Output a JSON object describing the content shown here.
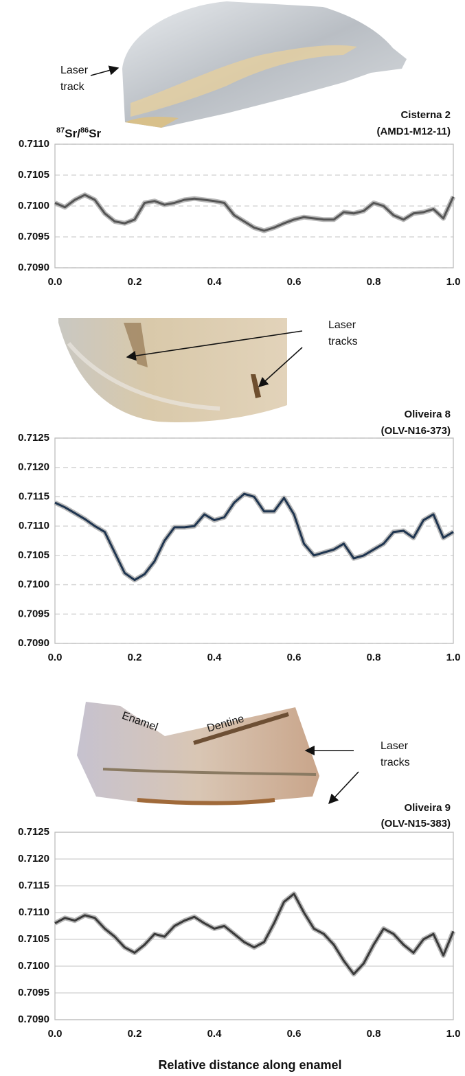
{
  "chart_data": [
    {
      "type": "line",
      "title": [
        "Cisterna 2",
        "(AMD1-M12-11)"
      ],
      "ylabel": [
        "87",
        "Sr/",
        "86",
        "Sr"
      ],
      "annotations": [
        [
          "Laser",
          "track"
        ]
      ],
      "x": [
        0,
        0.025,
        0.05,
        0.075,
        0.1,
        0.125,
        0.15,
        0.175,
        0.2,
        0.225,
        0.25,
        0.275,
        0.3,
        0.325,
        0.35,
        0.375,
        0.4,
        0.425,
        0.45,
        0.475,
        0.5,
        0.525,
        0.55,
        0.575,
        0.6,
        0.625,
        0.65,
        0.675,
        0.7,
        0.725,
        0.75,
        0.775,
        0.8,
        0.825,
        0.85,
        0.875,
        0.9,
        0.925,
        0.95,
        0.975,
        1
      ],
      "values": [
        0.71005,
        0.70998,
        0.7101,
        0.71018,
        0.7101,
        0.70988,
        0.70975,
        0.70972,
        0.70978,
        0.71005,
        0.71008,
        0.71002,
        0.71005,
        0.7101,
        0.71012,
        0.7101,
        0.71008,
        0.71005,
        0.70985,
        0.70975,
        0.70965,
        0.7096,
        0.70965,
        0.70972,
        0.70978,
        0.70982,
        0.7098,
        0.70978,
        0.70978,
        0.7099,
        0.70988,
        0.70992,
        0.71005,
        0.71,
        0.70985,
        0.70978,
        0.70988,
        0.7099,
        0.70995,
        0.7098,
        0.71015
      ],
      "color": "#555555",
      "grid": "dashed",
      "xlim": [
        0,
        1
      ],
      "xticks": [
        {
          "value": 0,
          "label": "0.0"
        },
        0.2,
        0.4,
        0.6,
        0.8,
        {
          "value": 1,
          "label": "1.0"
        }
      ],
      "ylim": [
        0.709,
        0.711
      ],
      "yticks": [
        {
          "value": 0.709,
          "label": "0.7090"
        },
        0.7095,
        {
          "value": 0.71,
          "label": "0.7100"
        },
        0.7105,
        {
          "value": 0.711,
          "label": "0.7110"
        }
      ]
    },
    {
      "type": "line",
      "title": [
        "Oliveira 8",
        "(OLV-N16-373)"
      ],
      "annotations": [
        [
          "Laser",
          "tracks"
        ]
      ],
      "x": [
        0,
        0.025,
        0.05,
        0.075,
        0.1,
        0.125,
        0.15,
        0.175,
        0.2,
        0.225,
        0.25,
        0.275,
        0.3,
        0.325,
        0.35,
        0.375,
        0.4,
        0.425,
        0.45,
        0.475,
        0.5,
        0.525,
        0.55,
        0.575,
        0.6,
        0.625,
        0.65,
        0.675,
        0.7,
        0.725,
        0.75,
        0.775,
        0.8,
        0.825,
        0.85,
        0.875,
        0.9,
        0.925,
        0.95,
        0.975,
        1
      ],
      "values": [
        0.7114,
        0.71132,
        0.71122,
        0.71112,
        0.711,
        0.7109,
        0.71055,
        0.7102,
        0.71008,
        0.71018,
        0.7104,
        0.71075,
        0.71098,
        0.71098,
        0.711,
        0.7112,
        0.7111,
        0.71115,
        0.7114,
        0.71155,
        0.7115,
        0.71125,
        0.71125,
        0.71148,
        0.7112,
        0.7107,
        0.7105,
        0.71055,
        0.7106,
        0.7107,
        0.71045,
        0.7105,
        0.7106,
        0.7107,
        0.7109,
        0.71092,
        0.7108,
        0.7111,
        0.7112,
        0.7108,
        0.7109
      ],
      "color": "#1f3550",
      "grid": "dashed",
      "xlim": [
        0,
        1
      ],
      "xticks": [
        {
          "value": 0,
          "label": "0.0"
        },
        0.2,
        0.4,
        0.6,
        0.8,
        {
          "value": 1,
          "label": "1.0"
        }
      ],
      "ylim": [
        0.709,
        0.7125
      ],
      "yticks": [
        {
          "value": 0.709,
          "label": "0.7090"
        },
        0.7095,
        {
          "value": 0.71,
          "label": "0.7100"
        },
        0.7105,
        {
          "value": 0.711,
          "label": "0.7110"
        },
        0.7115,
        {
          "value": 0.712,
          "label": "0.7120"
        },
        0.7125
      ]
    },
    {
      "type": "line",
      "title": [
        "Oliveira 9",
        "(OLV-N15-383)"
      ],
      "annotations": [
        [
          "Enamel"
        ],
        [
          "Dentine"
        ],
        [
          "Laser",
          "tracks"
        ]
      ],
      "xlabel": "Relative distance along enamel",
      "x": [
        0,
        0.025,
        0.05,
        0.075,
        0.1,
        0.125,
        0.15,
        0.175,
        0.2,
        0.225,
        0.25,
        0.275,
        0.3,
        0.325,
        0.35,
        0.375,
        0.4,
        0.425,
        0.45,
        0.475,
        0.5,
        0.525,
        0.55,
        0.575,
        0.6,
        0.625,
        0.65,
        0.675,
        0.7,
        0.725,
        0.75,
        0.775,
        0.8,
        0.825,
        0.85,
        0.875,
        0.9,
        0.925,
        0.95,
        0.975,
        1
      ],
      "values": [
        0.7108,
        0.7109,
        0.71085,
        0.71095,
        0.7109,
        0.7107,
        0.71055,
        0.71035,
        0.71025,
        0.7104,
        0.7106,
        0.71055,
        0.71075,
        0.71085,
        0.71092,
        0.7108,
        0.7107,
        0.71075,
        0.7106,
        0.71045,
        0.71035,
        0.71045,
        0.7108,
        0.7112,
        0.71135,
        0.711,
        0.7107,
        0.7106,
        0.7104,
        0.7101,
        0.70985,
        0.71005,
        0.7104,
        0.7107,
        0.7106,
        0.7104,
        0.71025,
        0.7105,
        0.7106,
        0.7102,
        0.71065
      ],
      "color": "#3a3a3a",
      "grid": "solid",
      "xlim": [
        0,
        1
      ],
      "xticks": [
        {
          "value": 0,
          "label": "0.0"
        },
        0.2,
        0.4,
        0.6,
        0.8,
        {
          "value": 1,
          "label": "1.0"
        }
      ],
      "ylim": [
        0.709,
        0.7125
      ],
      "yticks": [
        {
          "value": 0.709,
          "label": "0.7090"
        },
        0.7095,
        {
          "value": 0.71,
          "label": "0.7100"
        },
        0.7105,
        {
          "value": 0.711,
          "label": "0.7110"
        },
        0.7115,
        {
          "value": 0.712,
          "label": "0.7120"
        },
        0.7125
      ]
    }
  ]
}
